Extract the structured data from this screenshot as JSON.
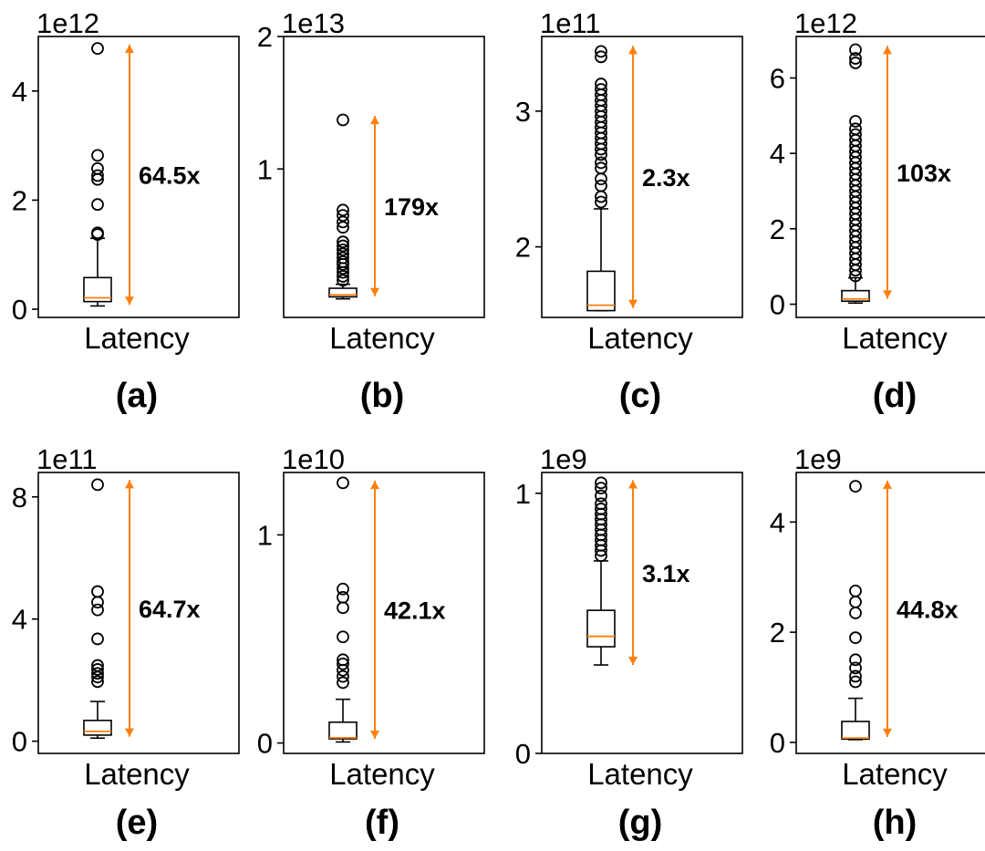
{
  "figure": {
    "colors": {
      "range_arrow": "#ff7f0e",
      "median": "#ff7f0e",
      "box": "#000000"
    }
  },
  "chart_data": [
    {
      "type": "box",
      "caption": "(a)",
      "xlabel": "Latency",
      "exponent": "1e12",
      "ratio_label": "64.5x",
      "ylim": [
        -0.15,
        5.0
      ],
      "yticks": [
        0,
        2,
        4
      ],
      "ytick_labels": [
        "0",
        "2",
        "4"
      ],
      "box": {
        "whisker_low": 0.06,
        "q1": 0.14,
        "median": 0.21,
        "q3": 0.58,
        "whisker_high": 1.3
      },
      "outliers": [
        1.37,
        1.4,
        1.92,
        2.38,
        2.45,
        2.58,
        2.82,
        4.78
      ],
      "range_arrow": [
        0.08,
        4.85
      ]
    },
    {
      "type": "box",
      "caption": "(b)",
      "xlabel": "Latency",
      "exponent": "1e13",
      "ratio_label": "179x",
      "ylim": [
        -0.12,
        2.0
      ],
      "yticks": [
        1,
        2
      ],
      "ytick_labels": [
        "1",
        "2"
      ],
      "box": {
        "whisker_low": 0.02,
        "q1": 0.035,
        "median": 0.05,
        "q3": 0.1,
        "whisker_high": 0.13
      },
      "outliers": [
        0.16,
        0.19,
        0.22,
        0.25,
        0.28,
        0.3,
        0.33,
        0.36,
        0.39,
        0.42,
        0.45,
        0.56,
        0.6,
        0.65,
        0.69,
        1.37
      ],
      "range_arrow": [
        0.04,
        1.4
      ]
    },
    {
      "type": "box",
      "caption": "(c)",
      "xlabel": "Latency",
      "exponent": "1e11",
      "ratio_label": "2.3x",
      "ylim": [
        1.48,
        3.55
      ],
      "yticks": [
        2,
        3
      ],
      "ytick_labels": [
        "2",
        "3"
      ],
      "box": {
        "whisker_low": 1.53,
        "q1": 1.53,
        "median": 1.57,
        "q3": 1.82,
        "whisker_high": 2.28
      },
      "outliers": [
        2.33,
        2.37,
        2.45,
        2.5,
        2.58,
        2.62,
        2.68,
        2.72,
        2.76,
        2.8,
        2.84,
        2.88,
        2.92,
        2.96,
        3.0,
        3.04,
        3.08,
        3.12,
        3.16,
        3.2,
        3.4,
        3.44
      ],
      "range_arrow": [
        1.55,
        3.48
      ]
    },
    {
      "type": "box",
      "caption": "(d)",
      "xlabel": "Latency",
      "exponent": "1e12",
      "ratio_label": "103x",
      "ylim": [
        -0.35,
        7.1
      ],
      "yticks": [
        0,
        2,
        4,
        6
      ],
      "ytick_labels": [
        "0",
        "2",
        "4",
        "6"
      ],
      "box": {
        "whisker_low": 0.03,
        "q1": 0.08,
        "median": 0.14,
        "q3": 0.36,
        "whisker_high": 0.7
      },
      "outliers": [
        0.75,
        0.9,
        1.05,
        1.2,
        1.35,
        1.5,
        1.65,
        1.8,
        1.95,
        2.1,
        2.25,
        2.4,
        2.55,
        2.7,
        2.85,
        3.0,
        3.15,
        3.3,
        3.45,
        3.6,
        3.75,
        3.9,
        4.05,
        4.2,
        4.35,
        4.5,
        4.65,
        4.85,
        6.4,
        6.52,
        6.75
      ],
      "range_arrow": [
        0.15,
        6.85
      ]
    },
    {
      "type": "box",
      "caption": "(e)",
      "xlabel": "Latency",
      "exponent": "1e11",
      "ratio_label": "64.7x",
      "ylim": [
        -0.4,
        8.8
      ],
      "yticks": [
        0,
        4,
        8
      ],
      "ytick_labels": [
        "0",
        "4",
        "8"
      ],
      "box": {
        "whisker_low": 0.1,
        "q1": 0.2,
        "median": 0.32,
        "q3": 0.68,
        "whisker_high": 1.3
      },
      "outliers": [
        1.95,
        2.1,
        2.22,
        2.35,
        2.48,
        3.35,
        4.3,
        4.55,
        4.9,
        8.4
      ],
      "range_arrow": [
        0.15,
        8.55
      ]
    },
    {
      "type": "box",
      "caption": "(f)",
      "xlabel": "Latency",
      "exponent": "1e10",
      "ratio_label": "42.1x",
      "ylim": [
        -0.05,
        1.3
      ],
      "yticks": [
        0,
        1
      ],
      "ytick_labels": [
        "0",
        "1"
      ],
      "box": {
        "whisker_low": 0.005,
        "q1": 0.02,
        "median": 0.025,
        "q3": 0.1,
        "whisker_high": 0.21
      },
      "outliers": [
        0.29,
        0.32,
        0.35,
        0.38,
        0.4,
        0.51,
        0.65,
        0.7,
        0.74,
        1.25
      ],
      "range_arrow": [
        0.02,
        1.26
      ]
    },
    {
      "type": "box",
      "caption": "(g)",
      "xlabel": "Latency",
      "exponent": "1e9",
      "ratio_label": "3.1x",
      "ylim": [
        0,
        1.08
      ],
      "yticks": [
        0,
        1
      ],
      "ytick_labels": [
        "0",
        "1"
      ],
      "box": {
        "whisker_low": 0.34,
        "q1": 0.41,
        "median": 0.45,
        "q3": 0.55,
        "whisker_high": 0.74
      },
      "outliers": [
        0.76,
        0.78,
        0.8,
        0.82,
        0.84,
        0.86,
        0.88,
        0.9,
        0.92,
        0.94,
        0.96,
        0.99,
        1.02,
        1.04
      ],
      "range_arrow": [
        0.34,
        1.05
      ]
    },
    {
      "type": "box",
      "caption": "(h)",
      "xlabel": "Latency",
      "exponent": "1e9",
      "ratio_label": "44.8x",
      "ylim": [
        -0.2,
        4.9
      ],
      "yticks": [
        0,
        2,
        4
      ],
      "ytick_labels": [
        "0",
        "2",
        "4"
      ],
      "box": {
        "whisker_low": 0.05,
        "q1": 0.06,
        "median": 0.08,
        "q3": 0.38,
        "whisker_high": 0.8
      },
      "outliers": [
        1.1,
        1.2,
        1.35,
        1.5,
        1.9,
        2.35,
        2.55,
        2.75,
        4.65
      ],
      "range_arrow": [
        0.1,
        4.75
      ]
    }
  ]
}
